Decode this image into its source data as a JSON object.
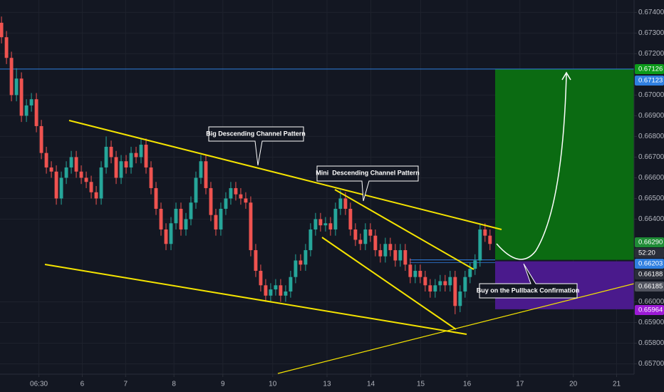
{
  "chart_data": {
    "type": "candlestick",
    "x": [
      0,
      1,
      2,
      3,
      4,
      5,
      6,
      7,
      8,
      9,
      10,
      11,
      12,
      13,
      14,
      15,
      16,
      17,
      18,
      19,
      20,
      21,
      22,
      23,
      24,
      25,
      26,
      27,
      28,
      29,
      30,
      31,
      32,
      33,
      34,
      35,
      36,
      37,
      38,
      39,
      40,
      41,
      42,
      43,
      44,
      45,
      46,
      47,
      48,
      49,
      50,
      51,
      52,
      53,
      54,
      55,
      56,
      57,
      58,
      59,
      60,
      61,
      62,
      63,
      64,
      65,
      66,
      67,
      68,
      69,
      70,
      71,
      72,
      73,
      74,
      75,
      76,
      77,
      78,
      79,
      80,
      81,
      82,
      83,
      84,
      85,
      86,
      87,
      88,
      89,
      90,
      91,
      92,
      93,
      94,
      95,
      96,
      97,
      98
    ],
    "open": [
      0.6735,
      0.6728,
      0.6718,
      0.67,
      0.6708,
      0.669,
      0.6695,
      0.6698,
      0.6685,
      0.6672,
      0.6665,
      0.6663,
      0.665,
      0.666,
      0.6665,
      0.667,
      0.6663,
      0.666,
      0.6658,
      0.6653,
      0.665,
      0.6665,
      0.6675,
      0.667,
      0.666,
      0.6668,
      0.6665,
      0.6672,
      0.667,
      0.6676,
      0.6665,
      0.6655,
      0.6645,
      0.6635,
      0.6628,
      0.6638,
      0.6645,
      0.6635,
      0.664,
      0.6648,
      0.666,
      0.6668,
      0.6655,
      0.6642,
      0.6635,
      0.6645,
      0.665,
      0.6655,
      0.6652,
      0.665,
      0.6648,
      0.6625,
      0.6615,
      0.6608,
      0.6603,
      0.6606,
      0.6608,
      0.6603,
      0.6605,
      0.6612,
      0.662,
      0.6618,
      0.6625,
      0.6635,
      0.664,
      0.6637,
      0.6638,
      0.6635,
      0.6645,
      0.665,
      0.6645,
      0.6635,
      0.663,
      0.6628,
      0.6635,
      0.6632,
      0.6625,
      0.6622,
      0.6628,
      0.6625,
      0.662,
      0.6625,
      0.6618,
      0.6612,
      0.6615,
      0.6612,
      0.6608,
      0.6605,
      0.6608,
      0.661,
      0.6608,
      0.6612,
      0.6598,
      0.6605,
      0.6612,
      0.6616,
      0.662,
      0.6635,
      0.6632
    ],
    "high": [
      0.6738,
      0.6731,
      0.6721,
      0.6713,
      0.6711,
      0.6698,
      0.6701,
      0.6701,
      0.6688,
      0.6675,
      0.6668,
      0.6666,
      0.6663,
      0.6668,
      0.6673,
      0.6673,
      0.6666,
      0.6663,
      0.6661,
      0.6656,
      0.6668,
      0.668,
      0.6678,
      0.6673,
      0.6671,
      0.6671,
      0.6675,
      0.6675,
      0.6679,
      0.6679,
      0.6668,
      0.6658,
      0.6648,
      0.6638,
      0.6641,
      0.6648,
      0.6648,
      0.6643,
      0.6651,
      0.6663,
      0.6671,
      0.6671,
      0.6658,
      0.6645,
      0.6648,
      0.6653,
      0.6658,
      0.6658,
      0.6655,
      0.6653,
      0.6651,
      0.6628,
      0.6618,
      0.6611,
      0.6609,
      0.6611,
      0.6611,
      0.6608,
      0.6615,
      0.6623,
      0.6623,
      0.6628,
      0.6638,
      0.6643,
      0.6643,
      0.6641,
      0.6641,
      0.6648,
      0.6654,
      0.6653,
      0.6648,
      0.6638,
      0.6633,
      0.6638,
      0.6638,
      0.6635,
      0.6628,
      0.6631,
      0.6631,
      0.6628,
      0.6628,
      0.6628,
      0.6621,
      0.6618,
      0.6618,
      0.6615,
      0.6611,
      0.6611,
      0.6613,
      0.6613,
      0.6615,
      0.6615,
      0.6608,
      0.6615,
      0.6619,
      0.6623,
      0.6638,
      0.6638,
      0.6635
    ],
    "low": [
      0.6725,
      0.6715,
      0.6697,
      0.6697,
      0.6687,
      0.6687,
      0.6692,
      0.6682,
      0.6669,
      0.6662,
      0.666,
      0.6647,
      0.6647,
      0.6657,
      0.6662,
      0.666,
      0.6657,
      0.6655,
      0.665,
      0.6647,
      0.6647,
      0.6662,
      0.6667,
      0.6657,
      0.6657,
      0.6662,
      0.6662,
      0.6667,
      0.6667,
      0.6662,
      0.6652,
      0.6642,
      0.6632,
      0.6625,
      0.6625,
      0.6635,
      0.6632,
      0.6632,
      0.6637,
      0.6645,
      0.6657,
      0.6652,
      0.6639,
      0.6632,
      0.6632,
      0.6642,
      0.6647,
      0.6649,
      0.6647,
      0.6645,
      0.6622,
      0.6612,
      0.6605,
      0.66,
      0.66,
      0.6603,
      0.66,
      0.66,
      0.6602,
      0.6609,
      0.6615,
      0.6615,
      0.6622,
      0.6632,
      0.6634,
      0.6634,
      0.6632,
      0.6632,
      0.6642,
      0.6642,
      0.6632,
      0.6627,
      0.6625,
      0.6625,
      0.6629,
      0.6622,
      0.6619,
      0.6619,
      0.6622,
      0.6617,
      0.6617,
      0.6615,
      0.6609,
      0.6609,
      0.6609,
      0.6605,
      0.6602,
      0.6602,
      0.6605,
      0.6605,
      0.6605,
      0.6594,
      0.6595,
      0.6602,
      0.6609,
      0.6613,
      0.6617,
      0.6629,
      0.6625
    ],
    "close": [
      0.6728,
      0.6718,
      0.67,
      0.6708,
      0.669,
      0.6695,
      0.6698,
      0.6685,
      0.6672,
      0.6665,
      0.6663,
      0.665,
      0.666,
      0.6665,
      0.667,
      0.6663,
      0.666,
      0.6658,
      0.6653,
      0.665,
      0.6665,
      0.6675,
      0.667,
      0.666,
      0.6668,
      0.6665,
      0.6672,
      0.667,
      0.6676,
      0.6665,
      0.6655,
      0.6645,
      0.6635,
      0.6628,
      0.6638,
      0.6645,
      0.6635,
      0.664,
      0.6648,
      0.666,
      0.6668,
      0.6655,
      0.6642,
      0.6635,
      0.6645,
      0.665,
      0.6655,
      0.6652,
      0.665,
      0.6648,
      0.6625,
      0.6615,
      0.6608,
      0.6603,
      0.6606,
      0.6608,
      0.6603,
      0.6605,
      0.6612,
      0.662,
      0.6618,
      0.6625,
      0.6635,
      0.664,
      0.6637,
      0.6638,
      0.6635,
      0.6645,
      0.665,
      0.6645,
      0.6635,
      0.663,
      0.6628,
      0.6635,
      0.6632,
      0.6625,
      0.6622,
      0.6628,
      0.6625,
      0.662,
      0.6625,
      0.6618,
      0.6612,
      0.6615,
      0.6612,
      0.6608,
      0.6605,
      0.6608,
      0.661,
      0.6608,
      0.6612,
      0.6598,
      0.6605,
      0.6612,
      0.6616,
      0.662,
      0.6635,
      0.6632,
      0.6628
    ],
    "up_color": "#26a69a",
    "down_color": "#ef5350",
    "xlim": [
      -0.3,
      126.9
    ],
    "ylim": [
      0.6565,
      0.6746
    ],
    "xticks": [
      {
        "value": 7.5,
        "label": "06:30"
      },
      {
        "value": 16.2,
        "label": "6"
      },
      {
        "value": 24.9,
        "label": "7"
      },
      {
        "value": 34.6,
        "label": "8"
      },
      {
        "value": 44.4,
        "label": "9"
      },
      {
        "value": 54.4,
        "label": "10"
      },
      {
        "value": 65.3,
        "label": "13"
      },
      {
        "value": 74.1,
        "label": "14"
      },
      {
        "value": 84.1,
        "label": "15"
      },
      {
        "value": 93.4,
        "label": "16"
      },
      {
        "value": 104,
        "label": "17"
      },
      {
        "value": 114.7,
        "label": "20"
      },
      {
        "value": 123.4,
        "label": "21"
      }
    ],
    "yticks": [
      {
        "value": 0.674,
        "label": "0.67400"
      },
      {
        "value": 0.673,
        "label": "0.67300"
      },
      {
        "value": 0.672,
        "label": "0.67200"
      },
      {
        "value": 0.67,
        "label": "0.67000"
      },
      {
        "value": 0.669,
        "label": "0.66900"
      },
      {
        "value": 0.668,
        "label": "0.66800"
      },
      {
        "value": 0.667,
        "label": "0.66700"
      },
      {
        "value": 0.666,
        "label": "0.66600"
      },
      {
        "value": 0.665,
        "label": "0.66500"
      },
      {
        "value": 0.664,
        "label": "0.66400"
      },
      {
        "value": 0.66,
        "label": "0.66000"
      },
      {
        "value": 0.659,
        "label": "0.65900"
      },
      {
        "value": 0.658,
        "label": "0.65800"
      },
      {
        "value": 0.657,
        "label": "0.65700"
      }
    ],
    "grid": true,
    "position": {
      "target": 0.67126,
      "entry": 0.66203,
      "stop": 0.65964,
      "profit_color": "#0b6b12",
      "loss_color": "#4a1a8c"
    },
    "price_labels": [
      {
        "value": 0.67126,
        "label": "0.67126",
        "color": "#0c9a1a"
      },
      {
        "value": 0.67123,
        "label": "0.67123",
        "color": "#2f7fe0"
      },
      {
        "value": 0.6629,
        "label": "0.66290",
        "color": "#1f8c36"
      },
      {
        "label": "52:20",
        "color": "#2a2e39"
      },
      {
        "value": 0.66203,
        "label": "0.66203",
        "color": "#2f7fe0"
      },
      {
        "value": 0.66188,
        "label": "0.66188",
        "color": "#2a2e39"
      },
      {
        "value": 0.66185,
        "label": "0.66185",
        "color": "#50535e"
      },
      {
        "value": 0.65964,
        "label": "0.65964",
        "color": "#9c1ad6"
      }
    ],
    "annotations": [
      "Big Descending Channel Pattern",
      "Mini  Descending Channel Pattern",
      "Buy on the Pullback Confirmation"
    ]
  }
}
